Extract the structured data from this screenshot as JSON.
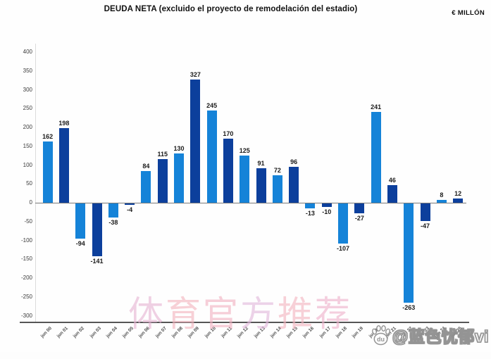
{
  "header": {
    "title": "DEUDA NETA (excluido el proyecto de remodelación del estadio)",
    "unit_label": "€ MILLÓN"
  },
  "chart_data": {
    "type": "bar",
    "title": "DEUDA NETA (excluido el proyecto de remodelación del estadio)",
    "ylabel": "€ MILLÓN",
    "xlabel": "",
    "categories": [
      "jun 00",
      "jun 01",
      "jun 02",
      "jun 03",
      "jun 04",
      "jun 05",
      "jun 06",
      "jun 07",
      "jun 08",
      "jun 09",
      "jun 10",
      "jun 11",
      "jun 12",
      "jun 13",
      "jun 14",
      "jun 15",
      "jun 16",
      "jun 17",
      "jun 18",
      "jun 19",
      "jun 20",
      "jun 21",
      "jun 22",
      "jun 23",
      "jun 24",
      "jun 25"
    ],
    "values": [
      162,
      198,
      -94,
      -141,
      -38,
      -4,
      84,
      115,
      130,
      327,
      245,
      170,
      125,
      91,
      72,
      96,
      -13,
      -10,
      -107,
      -27,
      241,
      46,
      -263,
      -47,
      8,
      12
    ],
    "ylim": [
      -300,
      400
    ],
    "yticks": [
      400,
      350,
      300,
      250,
      200,
      150,
      100,
      50,
      0,
      -50,
      -100,
      -150,
      -200,
      -250,
      -300
    ],
    "grid": "off",
    "legend": "none",
    "bar_color_alternation": "odd bars light blue, even bars dark blue",
    "colors": {
      "light": "#1583d8",
      "dark": "#0c3f9c"
    }
  },
  "watermarks": {
    "center_text": "体育官方推荐",
    "center_colors": [
      "#e7b4d4",
      "#f4b4be",
      "#f2b2c2",
      "#e2b8dc",
      "#f4b4c0",
      "#eeb2cc"
    ],
    "bottom_right_text": "@蓝色忧郁vi",
    "bottom_right_icon": "baidu-paw-logo",
    "icon_text": "du"
  },
  "axis_colors": {
    "zero_line": "#7a7a7a",
    "bottom_line": "#565656",
    "left_line": "#dcdcdc"
  }
}
